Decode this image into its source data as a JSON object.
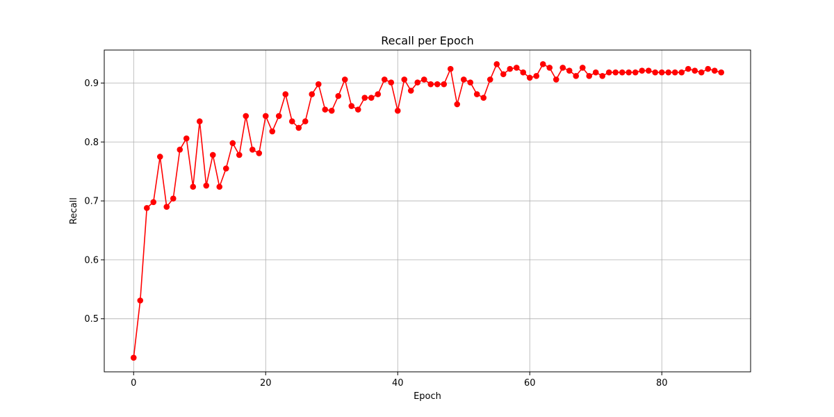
{
  "chart_data": {
    "type": "line",
    "title": "Recall per Epoch",
    "xlabel": "Epoch",
    "ylabel": "Recall",
    "xlim": [
      -4.45,
      93.45
    ],
    "ylim": [
      0.41,
      0.956
    ],
    "xticks": [
      0,
      20,
      40,
      60,
      80
    ],
    "yticks": [
      0.5,
      0.6,
      0.7,
      0.8,
      0.9
    ],
    "xtick_labels": [
      "0",
      "20",
      "40",
      "60",
      "80"
    ],
    "ytick_labels": [
      "0.5",
      "0.6",
      "0.7",
      "0.8",
      "0.9"
    ],
    "grid": true,
    "series": [
      {
        "color": "#ff0000",
        "marker": "circle",
        "x": [
          0,
          1,
          2,
          3,
          4,
          5,
          6,
          7,
          8,
          9,
          10,
          11,
          12,
          13,
          14,
          15,
          16,
          17,
          18,
          19,
          20,
          21,
          22,
          23,
          24,
          25,
          26,
          27,
          28,
          29,
          30,
          31,
          32,
          33,
          34,
          35,
          36,
          37,
          38,
          39,
          40,
          41,
          42,
          43,
          44,
          45,
          46,
          47,
          48,
          49,
          50,
          51,
          52,
          53,
          54,
          55,
          56,
          57,
          58,
          59,
          60,
          61,
          62,
          63,
          64,
          65,
          66,
          67,
          68,
          69,
          70,
          71,
          72,
          73,
          74,
          75,
          76,
          77,
          78,
          79,
          80,
          81,
          82,
          83,
          84,
          85,
          86,
          87,
          88,
          89
        ],
        "values": [
          0.434,
          0.531,
          0.688,
          0.698,
          0.775,
          0.69,
          0.704,
          0.787,
          0.806,
          0.724,
          0.835,
          0.726,
          0.778,
          0.724,
          0.755,
          0.798,
          0.778,
          0.844,
          0.787,
          0.781,
          0.844,
          0.818,
          0.844,
          0.881,
          0.835,
          0.824,
          0.835,
          0.881,
          0.898,
          0.855,
          0.853,
          0.878,
          0.906,
          0.861,
          0.855,
          0.875,
          0.875,
          0.881,
          0.906,
          0.901,
          0.853,
          0.906,
          0.887,
          0.901,
          0.906,
          0.898,
          0.898,
          0.898,
          0.924,
          0.864,
          0.906,
          0.901,
          0.881,
          0.875,
          0.906,
          0.932,
          0.915,
          0.924,
          0.926,
          0.918,
          0.909,
          0.912,
          0.932,
          0.926,
          0.906,
          0.926,
          0.921,
          0.912,
          0.926,
          0.912,
          0.918,
          0.912,
          0.918,
          0.918,
          0.918,
          0.918,
          0.918,
          0.921,
          0.921,
          0.918,
          0.918,
          0.918,
          0.918,
          0.918,
          0.924,
          0.921,
          0.918,
          0.924,
          0.921,
          0.918
        ]
      }
    ]
  }
}
